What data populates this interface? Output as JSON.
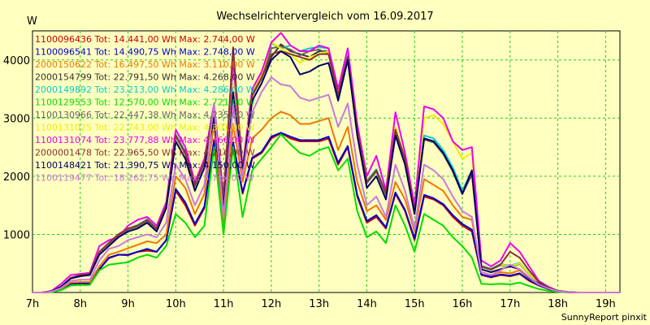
{
  "chart_data": {
    "type": "line",
    "title": "Wechselrichtervergleich vom 16.09.2017",
    "ylabel": "W",
    "xlabel": "",
    "footer": "SunnyReport pinxit",
    "grid": true,
    "legend_placement": "top-left",
    "xlim": [
      7,
      19.3
    ],
    "ylim": [
      0,
      4500
    ],
    "xtick_values": [
      7,
      8,
      9,
      10,
      11,
      12,
      13,
      14,
      15,
      16,
      17,
      18,
      19
    ],
    "xtick_labels": [
      "7h",
      "8h",
      "9h",
      "10h",
      "11h",
      "12h",
      "13h",
      "14h",
      "15h",
      "16h",
      "17h",
      "18h",
      "19h"
    ],
    "ytick_values": [
      1000,
      2000,
      3000,
      4000
    ],
    "ytick_labels": [
      "1000",
      "2000",
      "3000",
      "4000"
    ],
    "x": [
      7.0,
      7.2,
      7.4,
      7.6,
      7.8,
      8.0,
      8.2,
      8.4,
      8.6,
      8.8,
      9.0,
      9.2,
      9.4,
      9.6,
      9.8,
      10.0,
      10.2,
      10.4,
      10.6,
      10.8,
      11.0,
      11.2,
      11.4,
      11.6,
      11.8,
      12.0,
      12.2,
      12.4,
      12.6,
      12.8,
      13.0,
      13.2,
      13.4,
      13.6,
      13.8,
      14.0,
      14.2,
      14.4,
      14.6,
      14.8,
      15.0,
      15.2,
      15.4,
      15.6,
      15.8,
      16.0,
      16.2,
      16.4,
      16.6,
      16.8,
      17.0,
      17.2,
      17.4,
      17.6,
      17.8,
      18.0,
      18.2,
      18.4,
      18.6,
      18.8,
      19.0,
      19.2,
      19.3
    ],
    "series": [
      {
        "name": "1100096436",
        "legend_text": "1100096436 Tot: 14.441,00 Wh Max: 2.744,00 W",
        "color": "#cc0000",
        "values": [
          0,
          0,
          10,
          60,
          150,
          160,
          150,
          400,
          590,
          650,
          640,
          700,
          720,
          700,
          900,
          1750,
          1500,
          1150,
          1450,
          2600,
          1050,
          2550,
          1700,
          2300,
          2400,
          2650,
          2740,
          2650,
          2600,
          2600,
          2600,
          2650,
          2200,
          2500,
          1650,
          1200,
          1300,
          1100,
          1700,
          1400,
          900,
          1650,
          1600,
          1500,
          1300,
          1150,
          1050,
          300,
          260,
          300,
          280,
          320,
          200,
          120,
          60,
          20,
          5,
          0,
          0,
          0,
          0,
          0,
          0
        ]
      },
      {
        "name": "1100096541",
        "legend_text": "1100096541 Tot: 14.490,75 Wh Max: 2.748,00 W",
        "color": "#0000cc",
        "values": [
          0,
          0,
          10,
          60,
          150,
          160,
          150,
          400,
          600,
          650,
          650,
          700,
          750,
          700,
          900,
          1780,
          1550,
          1180,
          1480,
          2620,
          1080,
          2580,
          1720,
          2320,
          2420,
          2680,
          2748,
          2680,
          2620,
          2620,
          2620,
          2680,
          2230,
          2520,
          1680,
          1230,
          1330,
          1120,
          1720,
          1420,
          930,
          1680,
          1620,
          1520,
          1330,
          1180,
          1080,
          310,
          270,
          310,
          290,
          330,
          210,
          125,
          62,
          22,
          6,
          0,
          0,
          0,
          0,
          0,
          0
        ]
      },
      {
        "name": "2000150622",
        "legend_text": "2000150622 Tot: 16.497,50 Wh Max: 3.110,00 W",
        "color": "#ee7700",
        "values": [
          0,
          0,
          15,
          70,
          170,
          180,
          180,
          450,
          650,
          700,
          760,
          820,
          880,
          850,
          1000,
          2000,
          1800,
          1350,
          1700,
          2900,
          1150,
          2900,
          1900,
          2650,
          2800,
          3000,
          3110,
          3050,
          2900,
          2900,
          2950,
          3000,
          2450,
          2850,
          1900,
          1400,
          1500,
          1250,
          1900,
          1600,
          1050,
          1950,
          1850,
          1750,
          1500,
          1300,
          1250,
          350,
          300,
          350,
          330,
          380,
          240,
          140,
          70,
          25,
          6,
          0,
          0,
          0,
          0,
          0,
          0
        ]
      },
      {
        "name": "2000154799",
        "legend_text": "2000154799 Tot: 22.791,50 Wh Max: 4.268,00 W",
        "color": "#333333",
        "values": [
          0,
          0,
          20,
          100,
          250,
          300,
          320,
          700,
          850,
          1000,
          1100,
          1150,
          1250,
          1100,
          1500,
          2700,
          2400,
          1850,
          2250,
          3200,
          1600,
          3900,
          2100,
          3400,
          3700,
          4050,
          4268,
          4150,
          4100,
          4050,
          4150,
          4150,
          3400,
          4050,
          2800,
          1900,
          2100,
          1700,
          2800,
          2300,
          1400,
          2650,
          2600,
          2400,
          2100,
          1700,
          2050,
          450,
          400,
          480,
          450,
          500,
          320,
          180,
          90,
          30,
          8,
          0,
          0,
          0,
          0,
          0,
          0
        ]
      },
      {
        "name": "2000149892",
        "legend_text": "2000149892 Tot: 23.213,00 Wh Max: 4.286,00 W",
        "color": "#00cccc",
        "values": [
          0,
          0,
          20,
          100,
          250,
          300,
          320,
          700,
          860,
          1000,
          1100,
          1160,
          1260,
          1110,
          1520,
          2720,
          2420,
          1870,
          2270,
          3220,
          1620,
          3920,
          2120,
          3420,
          3720,
          4286,
          4200,
          4250,
          4150,
          4200,
          4220,
          4200,
          3420,
          4080,
          2820,
          1920,
          2120,
          1720,
          2820,
          2320,
          1420,
          2700,
          2650,
          2450,
          2150,
          1750,
          2100,
          460,
          410,
          490,
          460,
          510,
          330,
          185,
          92,
          31,
          8,
          0,
          0,
          0,
          0,
          0,
          0
        ]
      },
      {
        "name": "1100129553",
        "legend_text": "1100129553 Tot: 12.570,00 Wh Max: 2.721,00 W",
        "color": "#00dd00",
        "values": [
          0,
          0,
          5,
          40,
          120,
          130,
          130,
          380,
          480,
          500,
          520,
          600,
          650,
          600,
          800,
          1350,
          1200,
          950,
          1150,
          2500,
          1000,
          2500,
          1300,
          2100,
          2300,
          2500,
          2721,
          2550,
          2400,
          2350,
          2450,
          2500,
          2100,
          2300,
          1400,
          950,
          1050,
          850,
          1500,
          1150,
          700,
          1350,
          1250,
          1150,
          950,
          800,
          600,
          150,
          140,
          150,
          140,
          170,
          110,
          60,
          30,
          10,
          3,
          0,
          0,
          0,
          0,
          0,
          0
        ]
      },
      {
        "name": "1100130966",
        "legend_text": "1100130966 Tot: 22.447,38 Wh Max: 4.235,00 W",
        "color": "#666666",
        "values": [
          0,
          0,
          20,
          100,
          240,
          290,
          310,
          690,
          840,
          980,
          1080,
          1130,
          1230,
          1090,
          1480,
          2680,
          2380,
          1830,
          2230,
          3180,
          1590,
          3880,
          2080,
          3380,
          3680,
          4200,
          4235,
          4180,
          4080,
          4150,
          4180,
          4100,
          3380,
          4030,
          2780,
          1880,
          2080,
          1680,
          2780,
          2280,
          1390,
          2630,
          2580,
          2380,
          2080,
          1690,
          2030,
          440,
          390,
          470,
          440,
          490,
          310,
          175,
          88,
          29,
          8,
          0,
          0,
          0,
          0,
          0,
          0
        ]
      },
      {
        "name": "1100131025",
        "legend_text": "1100131025 Tot: 22.743,00 Wh Max: 4.301,00 W",
        "color": "#eeee00",
        "values": [
          0,
          0,
          20,
          100,
          250,
          300,
          320,
          700,
          850,
          1000,
          1100,
          1150,
          1250,
          1100,
          1500,
          2700,
          2400,
          1850,
          2250,
          3200,
          1600,
          3900,
          2100,
          3450,
          3750,
          4301,
          4200,
          4100,
          3950,
          4050,
          4100,
          4150,
          3450,
          4000,
          2800,
          1900,
          2100,
          1700,
          2850,
          2300,
          1400,
          3000,
          3050,
          2900,
          2600,
          2300,
          2400,
          450,
          400,
          480,
          450,
          500,
          320,
          180,
          90,
          30,
          8,
          0,
          0,
          0,
          0,
          0,
          0
        ]
      },
      {
        "name": "1100131074",
        "legend_text": "1100131074 Tot: 23.777,88 Wh Max: 4.466,00 W",
        "color": "#ee00ee",
        "values": [
          0,
          0,
          30,
          150,
          300,
          320,
          340,
          800,
          900,
          950,
          1150,
          1250,
          1300,
          1150,
          1550,
          2800,
          2500,
          1900,
          2300,
          3250,
          1650,
          4000,
          2150,
          3500,
          3800,
          4300,
          4466,
          4250,
          4150,
          4150,
          4250,
          4200,
          3500,
          4200,
          2900,
          2000,
          2350,
          1750,
          3100,
          2400,
          1500,
          3200,
          3150,
          3000,
          2600,
          2450,
          2500,
          550,
          450,
          550,
          850,
          700,
          450,
          200,
          100,
          30,
          8,
          0,
          0,
          0,
          0,
          0,
          0
        ]
      },
      {
        "name": "2000001478",
        "legend_text": "2000001478 Tot: 22.965,50 Wh Max: 4.216,00 W",
        "color": "#883333",
        "values": [
          0,
          0,
          20,
          100,
          250,
          300,
          320,
          700,
          850,
          1000,
          1100,
          1150,
          1250,
          1100,
          1500,
          2700,
          2400,
          1850,
          2250,
          3200,
          1600,
          4216,
          2100,
          3400,
          3700,
          4100,
          4150,
          4100,
          4050,
          4000,
          4100,
          4100,
          3400,
          4050,
          2800,
          1900,
          2100,
          1700,
          2800,
          2300,
          1400,
          2650,
          2600,
          2400,
          2100,
          1700,
          2050,
          450,
          400,
          480,
          700,
          600,
          380,
          180,
          90,
          30,
          8,
          0,
          0,
          0,
          0,
          0,
          0
        ]
      },
      {
        "name": "1100148421",
        "legend_text": "1100148421 Tot: 21.390,75 Wh Max: 4.150,00 W",
        "color": "#000066",
        "values": [
          0,
          0,
          20,
          100,
          240,
          280,
          300,
          650,
          800,
          950,
          1050,
          1100,
          1200,
          1050,
          1450,
          2600,
          2300,
          1750,
          2150,
          3000,
          1400,
          3450,
          2050,
          3300,
          3600,
          4000,
          4150,
          4050,
          3750,
          3800,
          3900,
          3950,
          3300,
          4000,
          2700,
          1800,
          2000,
          1600,
          2700,
          2200,
          1350,
          2650,
          2600,
          2400,
          2100,
          1700,
          2100,
          400,
          350,
          400,
          450,
          400,
          250,
          150,
          70,
          25,
          6,
          0,
          0,
          0,
          0,
          0,
          0
        ]
      },
      {
        "name": "1100119477",
        "legend_text": "1100119477 Tot: 18.262,75 Wh Max: 3.7xx,00 W",
        "color": "#cc77dd",
        "values": [
          0,
          0,
          15,
          80,
          200,
          220,
          220,
          550,
          750,
          800,
          900,
          950,
          1000,
          950,
          1200,
          2200,
          1950,
          1500,
          1850,
          3250,
          1300,
          3250,
          2000,
          3100,
          3450,
          3700,
          3580,
          3550,
          3350,
          3300,
          3350,
          3400,
          2850,
          3250,
          2200,
          1500,
          1650,
          1300,
          2200,
          1750,
          1100,
          2200,
          2100,
          1950,
          1650,
          1400,
          1300,
          350,
          300,
          380,
          480,
          400,
          260,
          140,
          70,
          25,
          6,
          0,
          0,
          0,
          0,
          0,
          0
        ]
      }
    ]
  }
}
